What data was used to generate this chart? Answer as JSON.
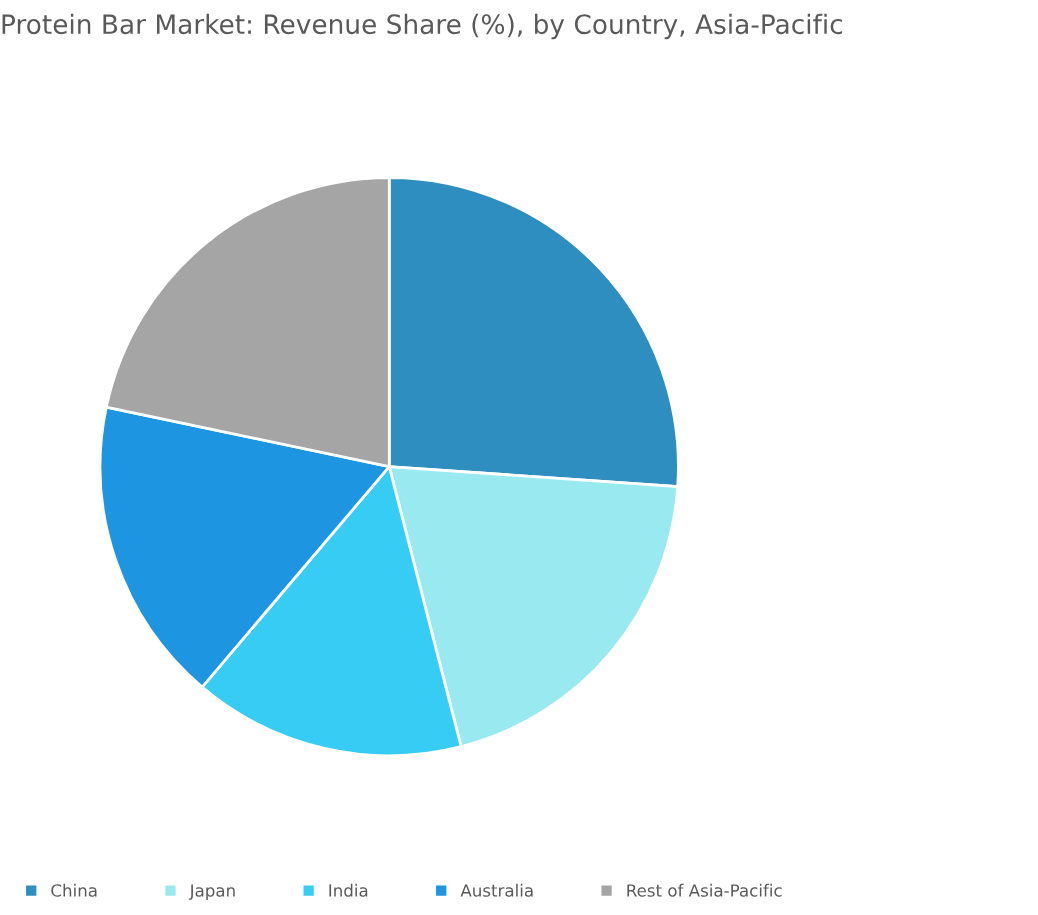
{
  "chart_data": {
    "type": "pie",
    "title": "Protein Bar Market: Revenue Share (%), by Country, Asia-Pacific",
    "categories": [
      "China",
      "Japan",
      "India",
      "Australia",
      "Rest of Asia-Pacific"
    ],
    "values": [
      26.1,
      19.9,
      15.2,
      17.1,
      21.7
    ],
    "colors": [
      "#2e8ec0",
      "#99eaf0",
      "#36ccf4",
      "#1d95e0",
      "#a5a5a5"
    ],
    "legend": "bottom"
  }
}
